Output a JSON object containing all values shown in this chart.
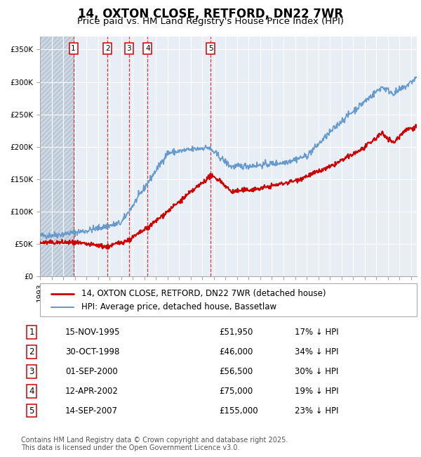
{
  "title": "14, OXTON CLOSE, RETFORD, DN22 7WR",
  "subtitle": "Price paid vs. HM Land Registry's House Price Index (HPI)",
  "ylim": [
    0,
    370000
  ],
  "yticks": [
    0,
    50000,
    100000,
    150000,
    200000,
    250000,
    300000,
    350000
  ],
  "ytick_labels": [
    "£0",
    "£50K",
    "£100K",
    "£150K",
    "£200K",
    "£250K",
    "£300K",
    "£350K"
  ],
  "xmin": 1993.0,
  "xmax": 2025.5,
  "transactions": [
    {
      "num": 1,
      "date": "15-NOV-1995",
      "year": 1995.88,
      "price": 51950,
      "pct": "17%",
      "label": "15-NOV-1995",
      "price_str": "£51,950"
    },
    {
      "num": 2,
      "date": "30-OCT-1998",
      "year": 1998.83,
      "price": 46000,
      "pct": "34%",
      "label": "30-OCT-1998",
      "price_str": "£46,000"
    },
    {
      "num": 3,
      "date": "01-SEP-2000",
      "year": 2000.67,
      "price": 56500,
      "pct": "30%",
      "label": "01-SEP-2000",
      "price_str": "£56,500"
    },
    {
      "num": 4,
      "date": "12-APR-2002",
      "year": 2002.28,
      "price": 75000,
      "pct": "19%",
      "label": "12-APR-2002",
      "price_str": "£75,000"
    },
    {
      "num": 5,
      "date": "14-SEP-2007",
      "year": 2007.71,
      "price": 155000,
      "pct": "23%",
      "label": "14-SEP-2007",
      "price_str": "£155,000"
    }
  ],
  "red_color": "#cc0000",
  "blue_color": "#6699cc",
  "plot_bg": "#e8eef5",
  "grid_color": "#ffffff",
  "hatch_color": "#c0c8d8",
  "legend_label_red": "14, OXTON CLOSE, RETFORD, DN22 7WR (detached house)",
  "legend_label_blue": "HPI: Average price, detached house, Bassetlaw",
  "footer": "Contains HM Land Registry data © Crown copyright and database right 2025.\nThis data is licensed under the Open Government Licence v3.0.",
  "title_fontsize": 12,
  "subtitle_fontsize": 9.5,
  "tick_fontsize": 7.5,
  "legend_fontsize": 8.5,
  "table_fontsize": 8.5
}
